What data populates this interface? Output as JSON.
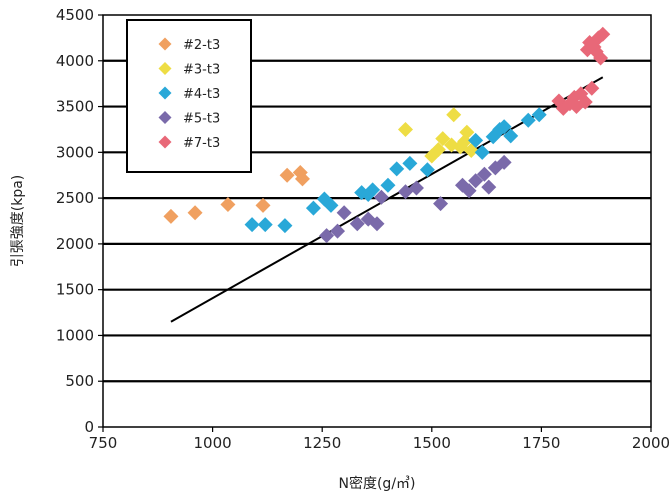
{
  "chart_data": {
    "type": "scatter",
    "title": "",
    "xlabel": "N密度(g/㎥)",
    "ylabel": "引張強度(kpa)",
    "xlim": [
      750,
      2000
    ],
    "ylim": [
      0,
      4500
    ],
    "xticks": [
      750,
      1000,
      1250,
      1500,
      1750,
      2000
    ],
    "yticks": [
      0,
      500,
      1000,
      1500,
      2000,
      2500,
      3000,
      3500,
      4000,
      4500
    ],
    "grid": "horizontal",
    "legend_position": "top-left",
    "series": [
      {
        "name": "#2-t3",
        "color": "#f0a060",
        "marker": "diamond",
        "points": [
          [
            905,
            2300
          ],
          [
            960,
            2340
          ],
          [
            1035,
            2430
          ],
          [
            1115,
            2420
          ],
          [
            1170,
            2750
          ],
          [
            1200,
            2780
          ],
          [
            1205,
            2710
          ]
        ]
      },
      {
        "name": "#3-t3",
        "color": "#eedd44",
        "marker": "diamond",
        "points": [
          [
            1440,
            3250
          ],
          [
            1500,
            2960
          ],
          [
            1515,
            3030
          ],
          [
            1525,
            3150
          ],
          [
            1545,
            3080
          ],
          [
            1550,
            3410
          ],
          [
            1565,
            3060
          ],
          [
            1575,
            3120
          ],
          [
            1580,
            3220
          ],
          [
            1590,
            3020
          ]
        ]
      },
      {
        "name": "#4-t3",
        "color": "#29a8d8",
        "marker": "diamond",
        "points": [
          [
            1090,
            2210
          ],
          [
            1120,
            2210
          ],
          [
            1165,
            2200
          ],
          [
            1230,
            2390
          ],
          [
            1255,
            2490
          ],
          [
            1270,
            2420
          ],
          [
            1340,
            2560
          ],
          [
            1355,
            2540
          ],
          [
            1365,
            2590
          ],
          [
            1400,
            2640
          ],
          [
            1420,
            2820
          ],
          [
            1450,
            2880
          ],
          [
            1490,
            2810
          ],
          [
            1600,
            3130
          ],
          [
            1615,
            3000
          ],
          [
            1640,
            3170
          ],
          [
            1655,
            3250
          ],
          [
            1665,
            3280
          ],
          [
            1680,
            3180
          ],
          [
            1720,
            3350
          ],
          [
            1745,
            3410
          ]
        ]
      },
      {
        "name": "#5-t3",
        "color": "#7a6aaa",
        "marker": "diamond",
        "points": [
          [
            1260,
            2090
          ],
          [
            1285,
            2140
          ],
          [
            1300,
            2340
          ],
          [
            1330,
            2220
          ],
          [
            1355,
            2270
          ],
          [
            1375,
            2220
          ],
          [
            1385,
            2510
          ],
          [
            1440,
            2570
          ],
          [
            1465,
            2610
          ],
          [
            1520,
            2440
          ],
          [
            1570,
            2640
          ],
          [
            1585,
            2580
          ],
          [
            1600,
            2690
          ],
          [
            1620,
            2760
          ],
          [
            1630,
            2620
          ],
          [
            1645,
            2830
          ],
          [
            1665,
            2890
          ]
        ]
      },
      {
        "name": "#7-t3",
        "color": "#e86878",
        "marker": "diamond",
        "points": [
          [
            1790,
            3560
          ],
          [
            1800,
            3480
          ],
          [
            1815,
            3530
          ],
          [
            1825,
            3600
          ],
          [
            1830,
            3500
          ],
          [
            1840,
            3640
          ],
          [
            1850,
            3550
          ],
          [
            1855,
            4120
          ],
          [
            1860,
            4200
          ],
          [
            1865,
            3700
          ],
          [
            1870,
            4150
          ],
          [
            1875,
            4100
          ],
          [
            1880,
            4250
          ],
          [
            1885,
            4030
          ],
          [
            1890,
            4290
          ]
        ]
      }
    ],
    "trendline": {
      "x": [
        905,
        1890
      ],
      "y": [
        1150,
        3820
      ],
      "color": "#000000"
    }
  }
}
